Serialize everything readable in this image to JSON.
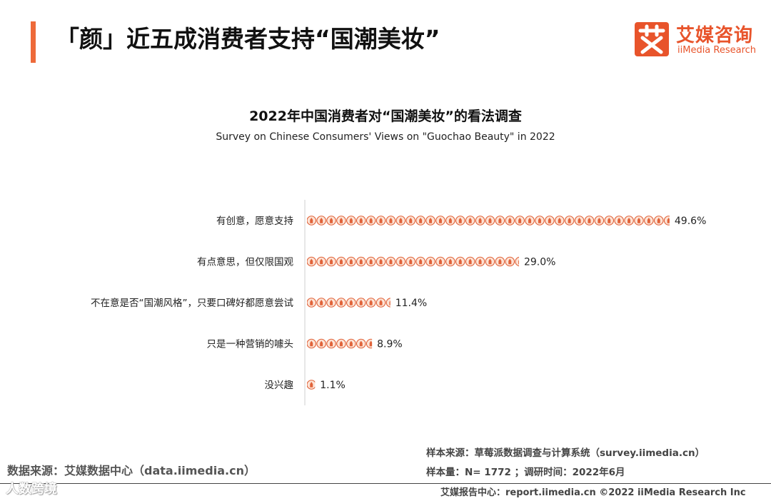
{
  "header": {
    "title": "「颜」近五成消费者支持“国潮美妆”",
    "logo_cn": "艾媒咨询",
    "logo_en": "iiMedia Research"
  },
  "chart_data": {
    "type": "bar",
    "title": "2022年中国消费者对“国潮美妆”的看法调查",
    "subtitle": "Survey on Chinese Consumers' Views on \"Guochao Beauty\" in 2022",
    "orientation": "horizontal",
    "marker": "lipstick-icon pictogram",
    "categories": [
      "有创意，愿意支持",
      "有点意思，但仅限国观",
      "不在意是否“国潮风格”，只要口碑好都愿意尝试",
      "只是一种营销的噱头",
      "没兴趣"
    ],
    "values": [
      49.6,
      29.0,
      11.4,
      8.9,
      1.1
    ],
    "value_labels": [
      "49.6%",
      "29.0%",
      "11.4%",
      "8.9%",
      "1.1%"
    ],
    "units": "%",
    "xlim": [
      0,
      50
    ],
    "grid": false,
    "legend": "none",
    "colors": {
      "icon_fill": "#f4a27f",
      "icon_stroke": "#e0633a",
      "icon_bg": "#fde3d5",
      "axis": "#cfcfcf"
    }
  },
  "sources": {
    "sample_source": "样本来源：草莓派数据调查与计算系统（survey.iimedia.cn）",
    "sample_size": "样本量：N= 1772 ；调研时间：2022年6月",
    "data_source": "数据来源：艾媒数据中心（data.iimedia.cn）",
    "footer": "艾媒报告中心：report.iimedia.cn ©2022 iiMedia Research Inc",
    "watermark": "人数跨境"
  },
  "theme": {
    "accent": "#ee6a3a",
    "brand": "#e8542b"
  }
}
